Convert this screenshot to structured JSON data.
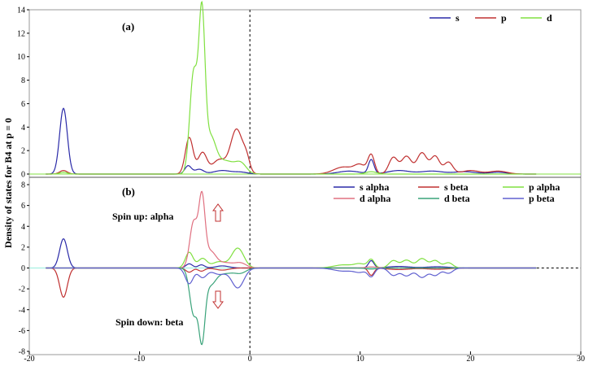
{
  "chart_data": [
    {
      "type": "line",
      "panel_label": "(a)",
      "ylabel": "Density of states for B4 at p = 0",
      "xlim": [
        -20,
        30
      ],
      "ylim": [
        0,
        14
      ],
      "yticks": [
        "14",
        "12",
        "10",
        "8",
        "6",
        "4",
        "2",
        "0"
      ],
      "legend_placement": "top-right",
      "fermi_line_x": 0,
      "series": [
        {
          "name": "s",
          "color": "#2a2aa8",
          "peaks": [
            [
              -16.9,
              5.6,
              0.35
            ],
            [
              -5.6,
              0.7,
              0.3
            ],
            [
              -4.6,
              0.4,
              0.4
            ],
            [
              -2.5,
              0.3,
              0.8
            ],
            [
              -0.8,
              0.15,
              0.6
            ],
            [
              11.0,
              1.2,
              0.25
            ],
            [
              9.0,
              0.25,
              1.0
            ],
            [
              13.5,
              0.3,
              1.0
            ],
            [
              16.5,
              0.25,
              1.0
            ],
            [
              19.5,
              0.2,
              1.0
            ],
            [
              22.5,
              0.15,
              0.8
            ]
          ]
        },
        {
          "name": "p",
          "color": "#c03030",
          "peaks": [
            [
              -16.9,
              0.3,
              0.35
            ],
            [
              -5.5,
              3.1,
              0.35
            ],
            [
              -4.3,
              1.8,
              0.4
            ],
            [
              -2.8,
              1.2,
              0.6
            ],
            [
              -1.2,
              3.8,
              0.55
            ],
            [
              -0.3,
              1.0,
              0.3
            ],
            [
              11.0,
              1.6,
              0.3
            ],
            [
              8.5,
              0.6,
              0.9
            ],
            [
              13.0,
              1.4,
              0.4
            ],
            [
              14.2,
              1.5,
              0.45
            ],
            [
              15.6,
              1.8,
              0.45
            ],
            [
              16.8,
              1.5,
              0.4
            ],
            [
              18.0,
              1.0,
              0.4
            ],
            [
              10.0,
              0.7,
              0.5
            ],
            [
              20.0,
              0.3,
              0.8
            ],
            [
              22.5,
              0.25,
              0.8
            ]
          ]
        },
        {
          "name": "d",
          "color": "#80e040",
          "peaks": [
            [
              -5.1,
              8.6,
              0.35
            ],
            [
              -4.35,
              12.8,
              0.28
            ],
            [
              -3.6,
              3.0,
              0.5
            ],
            [
              -2.2,
              1.1,
              0.8
            ],
            [
              -0.8,
              0.8,
              0.5
            ],
            [
              -16.9,
              0.15,
              0.35
            ],
            [
              11.0,
              0.2,
              0.5
            ]
          ]
        }
      ]
    },
    {
      "type": "line",
      "panel_label": "(b)",
      "xlim": [
        -20,
        30
      ],
      "ylim": [
        -8,
        8
      ],
      "yticks": [
        "8",
        "6",
        "4",
        "2",
        "0",
        "-2",
        "-4",
        "-6",
        "-8"
      ],
      "xticks": [
        "-20",
        "-10",
        "0",
        "10",
        "20",
        "30"
      ],
      "legend_placement": "top-right",
      "fermi_line_x": 0,
      "annotations": {
        "spin_up": "Spin up: alpha",
        "spin_down": "Spin down: beta"
      },
      "series": [
        {
          "name": "s alpha",
          "color": "#2a2aa8",
          "peaks": [
            [
              -16.9,
              2.8,
              0.35
            ],
            [
              -5.5,
              0.4,
              0.3
            ],
            [
              -4.4,
              0.3,
              0.3
            ],
            [
              -2.5,
              0.2,
              0.6
            ],
            [
              11.0,
              0.7,
              0.25
            ],
            [
              13.5,
              0.15,
              1.0
            ],
            [
              17.0,
              0.12,
              1.0
            ]
          ]
        },
        {
          "name": "s beta",
          "color": "#c03030",
          "peaks": [
            [
              -16.9,
              -2.8,
              0.35
            ],
            [
              -5.5,
              -0.4,
              0.3
            ],
            [
              -4.4,
              -0.3,
              0.3
            ],
            [
              -2.5,
              -0.2,
              0.6
            ],
            [
              11.0,
              -0.7,
              0.25
            ],
            [
              13.5,
              -0.15,
              1.0
            ],
            [
              17.0,
              -0.12,
              1.0
            ]
          ]
        },
        {
          "name": "p alpha",
          "color": "#80e040",
          "peaks": [
            [
              -5.5,
              1.5,
              0.35
            ],
            [
              -4.3,
              0.9,
              0.4
            ],
            [
              -2.8,
              0.6,
              0.6
            ],
            [
              -1.1,
              1.9,
              0.55
            ],
            [
              11.0,
              0.8,
              0.3
            ],
            [
              13.0,
              0.7,
              0.4
            ],
            [
              14.2,
              0.75,
              0.45
            ],
            [
              15.6,
              0.9,
              0.45
            ],
            [
              16.8,
              0.7,
              0.4
            ],
            [
              18.0,
              0.5,
              0.4
            ],
            [
              8.5,
              0.3,
              0.9
            ],
            [
              10.0,
              0.35,
              0.5
            ]
          ]
        },
        {
          "name": "d alpha",
          "color": "#e07080",
          "peaks": [
            [
              -5.1,
              4.4,
              0.35
            ],
            [
              -4.35,
              6.4,
              0.28
            ],
            [
              -3.6,
              1.5,
              0.5
            ],
            [
              -2.2,
              0.5,
              0.8
            ],
            [
              -0.8,
              0.4,
              0.5
            ],
            [
              11.0,
              0.1,
              0.5
            ]
          ]
        },
        {
          "name": "d beta",
          "color": "#3aa37a",
          "peaks": [
            [
              -5.1,
              -4.4,
              0.35
            ],
            [
              -4.35,
              -6.4,
              0.28
            ],
            [
              -3.6,
              -1.5,
              0.5
            ],
            [
              -2.2,
              -0.5,
              0.8
            ],
            [
              -0.8,
              -0.4,
              0.5
            ],
            [
              11.0,
              -0.1,
              0.5
            ]
          ]
        },
        {
          "name": "p beta",
          "color": "#6060d0",
          "peaks": [
            [
              -5.5,
              -1.5,
              0.35
            ],
            [
              -4.3,
              -0.9,
              0.4
            ],
            [
              -2.8,
              -0.6,
              0.6
            ],
            [
              -1.1,
              -1.9,
              0.55
            ],
            [
              11.0,
              -0.8,
              0.3
            ],
            [
              13.0,
              -0.7,
              0.4
            ],
            [
              14.2,
              -0.75,
              0.45
            ],
            [
              15.6,
              -0.9,
              0.45
            ],
            [
              16.8,
              -0.7,
              0.4
            ],
            [
              18.0,
              -0.5,
              0.4
            ],
            [
              8.5,
              -0.3,
              0.9
            ],
            [
              10.0,
              -0.35,
              0.5
            ]
          ]
        }
      ]
    }
  ]
}
